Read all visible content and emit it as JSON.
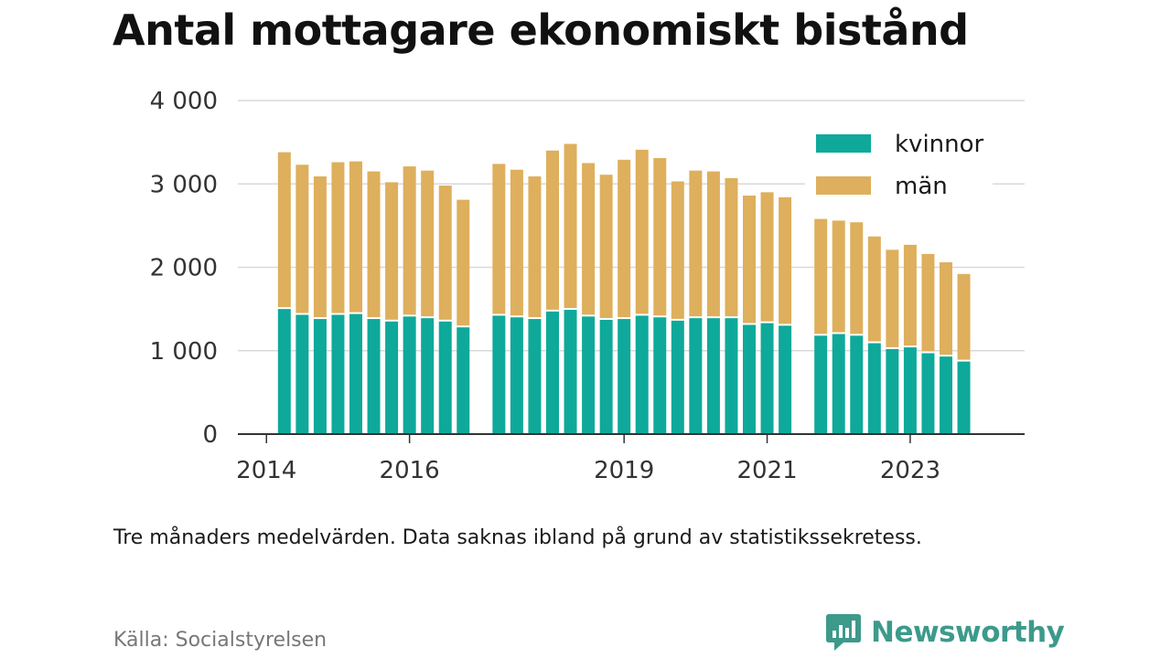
{
  "title": "Antal mottagare ekonomiskt bistånd",
  "note": "Tre månaders medelvärden. Data saknas ibland på grund av statistikssekretess.",
  "source": "Källa: Socialstyrelsen",
  "brand": {
    "name": "Newsworthy",
    "color": "#3d9a8b",
    "icon": "newsworthy-logo-icon"
  },
  "colors": {
    "kvinnor": "#0ea99a",
    "man": "#deaf5c",
    "grid": "#d9d9d9",
    "axis": "#333333"
  },
  "chart_data": {
    "type": "bar",
    "stacked": true,
    "ylim": [
      0,
      4000
    ],
    "yticks": [
      0,
      1000,
      2000,
      3000,
      4000
    ],
    "ytick_labels": [
      "0",
      "1 000",
      "2 000",
      "3 000",
      "4 000"
    ],
    "xticks": [
      {
        "label": "2014",
        "x": 2014.0
      },
      {
        "label": "2016",
        "x": 2016.0
      },
      {
        "label": "2019",
        "x": 2019.0
      },
      {
        "label": "2021",
        "x": 2021.0
      },
      {
        "label": "2023",
        "x": 2023.0
      }
    ],
    "xlim": [
      2013.6,
      2024.6
    ],
    "grid": true,
    "legend_position": "top-right",
    "x": [
      2014.25,
      2014.5,
      2014.75,
      2015.0,
      2015.25,
      2015.5,
      2015.75,
      2016.0,
      2016.25,
      2016.5,
      2016.75,
      2017.25,
      2017.5,
      2017.75,
      2018.0,
      2018.25,
      2018.5,
      2018.75,
      2019.0,
      2019.25,
      2019.5,
      2019.75,
      2020.0,
      2020.25,
      2020.5,
      2020.75,
      2021.0,
      2021.25,
      2021.75,
      2022.0,
      2022.25,
      2022.5,
      2022.75,
      2023.0,
      2023.25,
      2023.5,
      2023.75
    ],
    "series": [
      {
        "name": "kvinnor",
        "values": [
          1500,
          1430,
          1380,
          1430,
          1440,
          1380,
          1350,
          1410,
          1390,
          1350,
          1280,
          1420,
          1400,
          1380,
          1470,
          1490,
          1410,
          1370,
          1380,
          1420,
          1400,
          1360,
          1390,
          1390,
          1390,
          1310,
          1330,
          1300,
          1180,
          1200,
          1180,
          1090,
          1020,
          1040,
          970,
          930,
          870
        ]
      },
      {
        "name": "män",
        "values": [
          1880,
          1800,
          1710,
          1830,
          1830,
          1770,
          1670,
          1800,
          1770,
          1630,
          1530,
          1820,
          1770,
          1710,
          1930,
          1990,
          1840,
          1740,
          1910,
          1990,
          1910,
          1670,
          1770,
          1760,
          1680,
          1550,
          1570,
          1540,
          1400,
          1360,
          1360,
          1280,
          1190,
          1230,
          1190,
          1130,
          1050
        ]
      }
    ]
  }
}
